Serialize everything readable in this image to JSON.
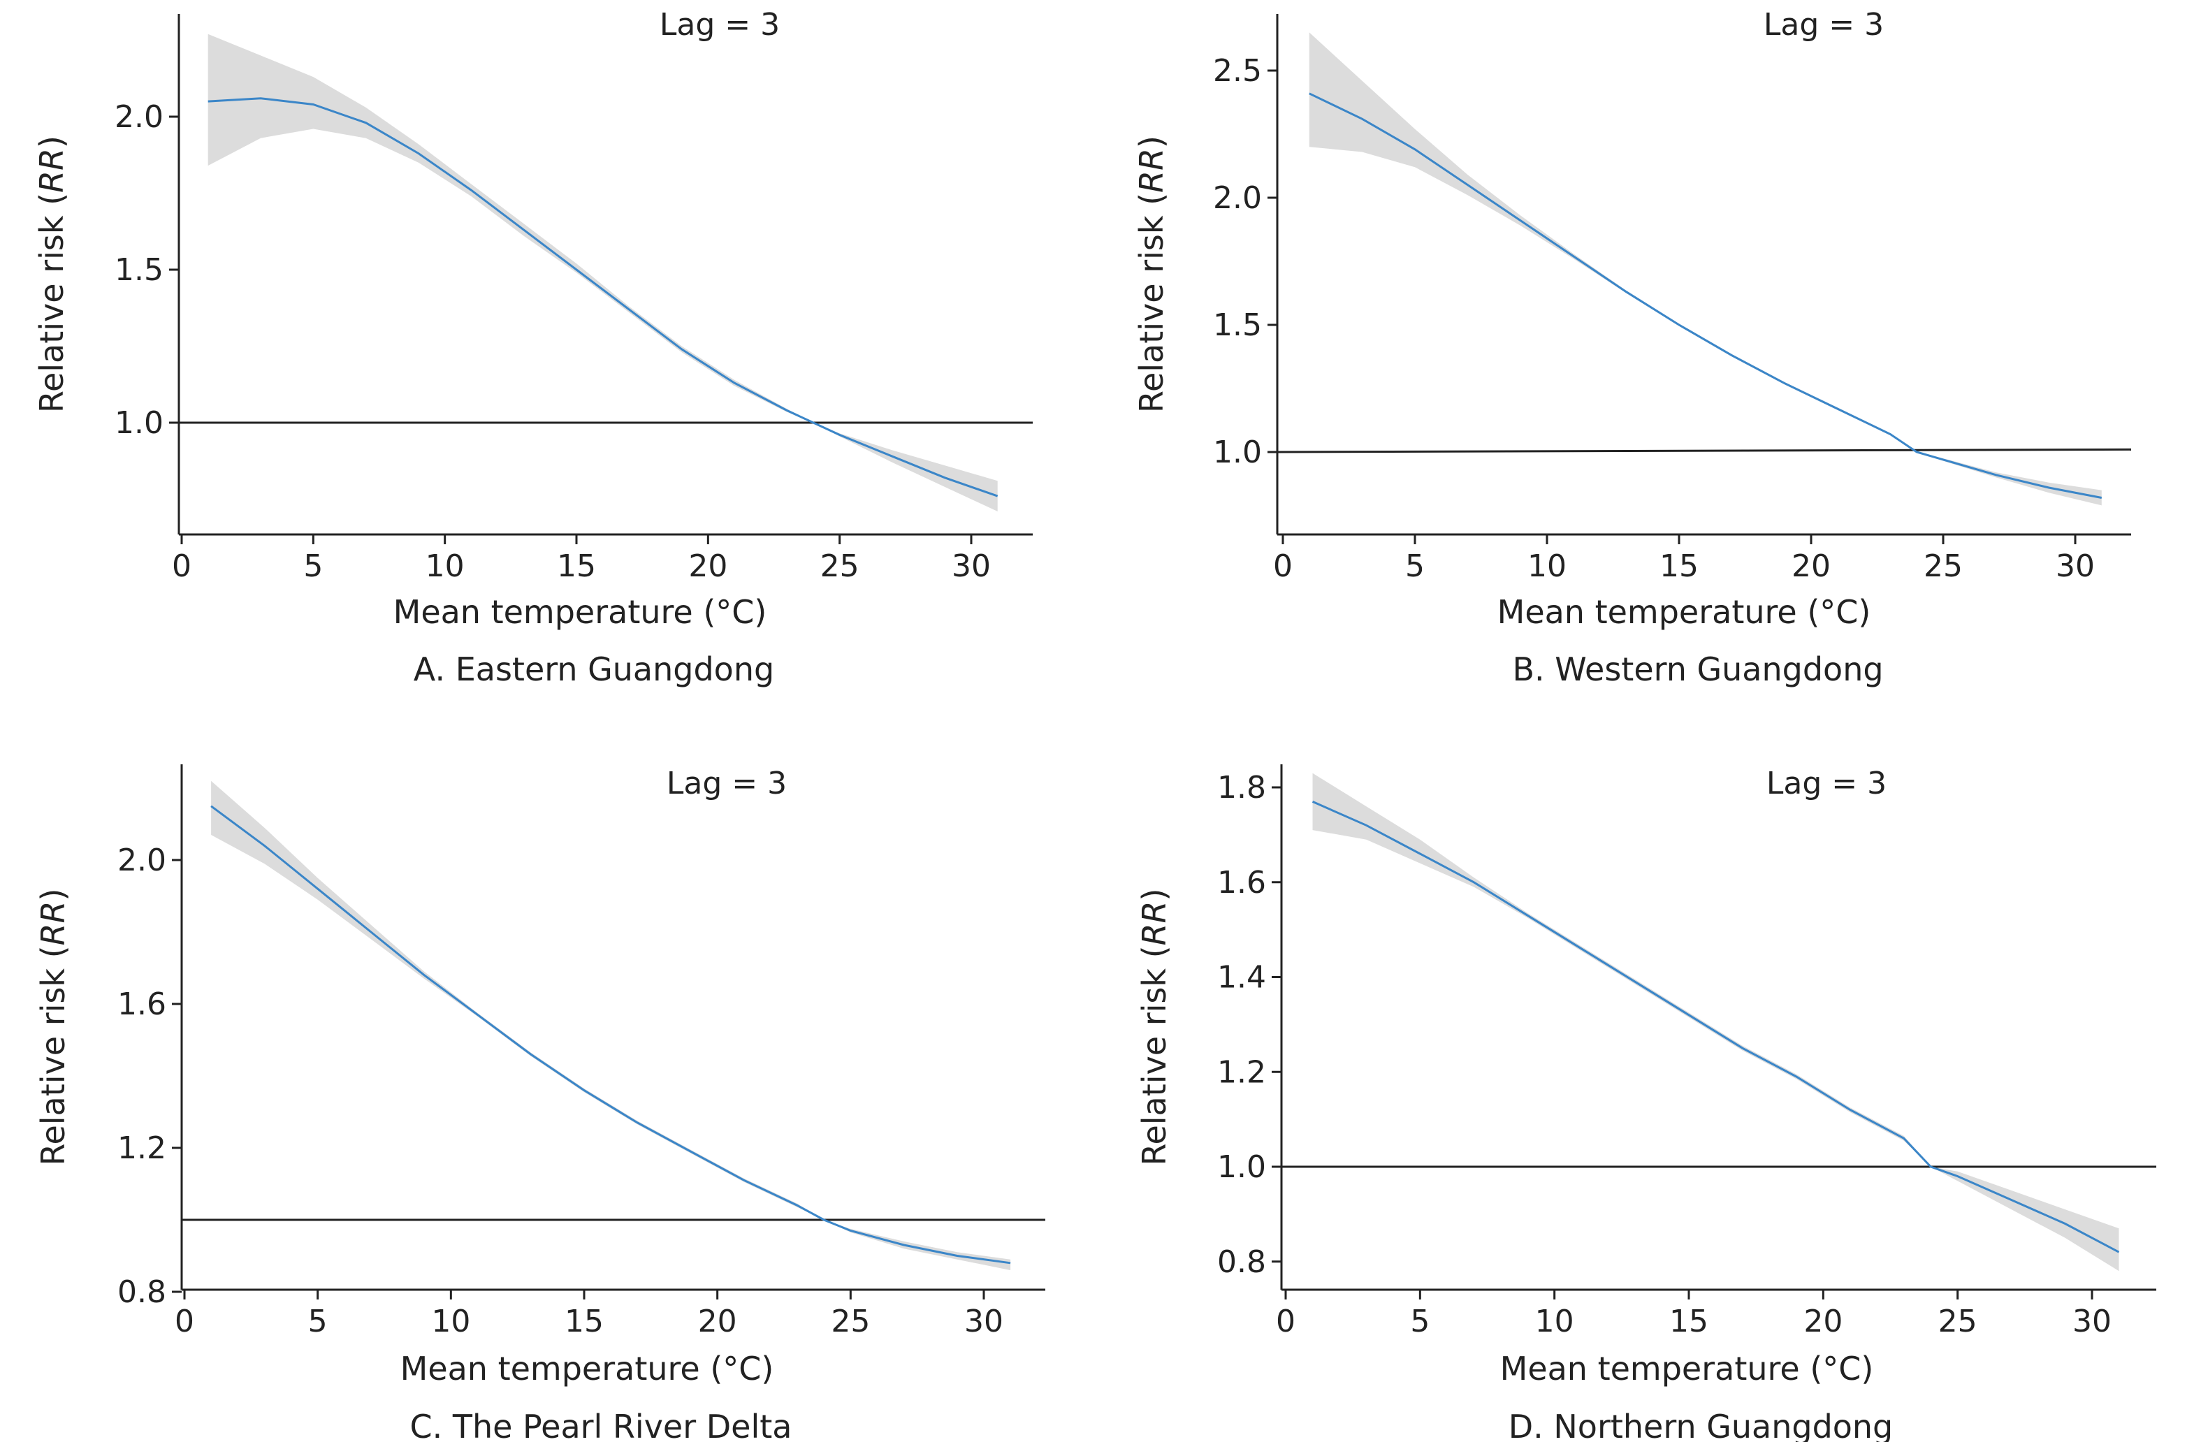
{
  "colors": {
    "curve": "#3b86c8",
    "band": "#dcdcdc",
    "axis": "#222222",
    "reference_line": "#222222"
  },
  "chart_data": [
    {
      "type": "line",
      "panel": "A",
      "caption": "A. Eastern Guangdong",
      "annotation": "Lag = 3",
      "xlabel": "Mean temperature (°C)",
      "ylabel_prefix": "Relative risk (",
      "ylabel_italic": "RR",
      "ylabel_suffix": ")",
      "xlim": [
        0,
        32.3
      ],
      "ylim": [
        0.64,
        2.33
      ],
      "xticks": [
        0,
        5,
        10,
        15,
        20,
        25,
        30
      ],
      "yticks": [
        1.0,
        1.5,
        2.0
      ],
      "ytick_labels": [
        "1.0",
        "1.5",
        "2.0"
      ],
      "reference_y": [
        1.0,
        1.0
      ],
      "series": [
        {
          "x": [
            1,
            3,
            5,
            7,
            9,
            11,
            13,
            15,
            17,
            19,
            21,
            23,
            24,
            25,
            27,
            29,
            31
          ],
          "y": [
            2.05,
            2.06,
            2.04,
            1.98,
            1.88,
            1.76,
            1.63,
            1.5,
            1.37,
            1.24,
            1.13,
            1.04,
            1.0,
            0.96,
            0.89,
            0.82,
            0.76
          ],
          "lower": [
            1.84,
            1.93,
            1.96,
            1.93,
            1.85,
            1.74,
            1.61,
            1.49,
            1.36,
            1.23,
            1.12,
            1.035,
            1.0,
            0.955,
            0.87,
            0.79,
            0.71
          ],
          "upper": [
            2.27,
            2.2,
            2.13,
            2.03,
            1.91,
            1.78,
            1.65,
            1.52,
            1.38,
            1.25,
            1.14,
            1.045,
            1.0,
            0.965,
            0.91,
            0.86,
            0.81
          ]
        }
      ]
    },
    {
      "type": "line",
      "panel": "B",
      "caption": "B. Western Guangdong",
      "annotation": "Lag = 3",
      "xlabel": "Mean temperature (°C)",
      "ylabel_prefix": "Relative risk (",
      "ylabel_italic": "RR",
      "ylabel_suffix": ")",
      "xlim": [
        0,
        32.3
      ],
      "ylim": [
        0.68,
        2.73
      ],
      "xticks": [
        0,
        5,
        10,
        15,
        20,
        25,
        30
      ],
      "yticks": [
        1.0,
        1.5,
        2.0,
        2.5
      ],
      "ytick_labels": [
        "1.0",
        "1.5",
        "2.0",
        "2.5"
      ],
      "reference_y": [
        1.0,
        1.01
      ],
      "series": [
        {
          "x": [
            1,
            3,
            5,
            7,
            9,
            11,
            13,
            15,
            17,
            19,
            21,
            23,
            24,
            25,
            27,
            29,
            31
          ],
          "y": [
            2.41,
            2.31,
            2.19,
            2.05,
            1.91,
            1.77,
            1.63,
            1.5,
            1.38,
            1.27,
            1.17,
            1.07,
            1.0,
            0.97,
            0.91,
            0.86,
            0.82
          ],
          "lower": [
            2.2,
            2.18,
            2.12,
            2.01,
            1.89,
            1.76,
            1.625,
            1.495,
            1.375,
            1.265,
            1.165,
            1.065,
            1.0,
            0.965,
            0.9,
            0.84,
            0.79
          ],
          "upper": [
            2.65,
            2.46,
            2.27,
            2.09,
            1.93,
            1.78,
            1.635,
            1.505,
            1.385,
            1.275,
            1.175,
            1.075,
            1.0,
            0.975,
            0.92,
            0.88,
            0.85
          ]
        }
      ]
    },
    {
      "type": "line",
      "panel": "C",
      "caption": "C. The Pearl River Delta",
      "annotation": "Lag = 3",
      "xlabel": "Mean temperature (°C)",
      "ylabel_prefix": "Relative risk (",
      "ylabel_italic": "RR",
      "ylabel_suffix": ")",
      "xlim": [
        0,
        32.3
      ],
      "ylim": [
        0.8,
        2.29
      ],
      "xticks": [
        0,
        5,
        10,
        15,
        20,
        25,
        30
      ],
      "yticks": [
        0.8,
        1.2,
        1.6,
        2.0
      ],
      "ytick_labels": [
        "0.8",
        "1.2",
        "1.6",
        "2.0"
      ],
      "reference_y": [
        1.0,
        1.0
      ],
      "series": [
        {
          "x": [
            1,
            3,
            5,
            7,
            9,
            11,
            13,
            15,
            17,
            19,
            21,
            23,
            24,
            25,
            27,
            29,
            31
          ],
          "y": [
            2.15,
            2.04,
            1.92,
            1.8,
            1.68,
            1.57,
            1.46,
            1.36,
            1.27,
            1.19,
            1.11,
            1.04,
            1.0,
            0.97,
            0.93,
            0.9,
            0.88
          ],
          "lower": [
            2.07,
            1.99,
            1.89,
            1.78,
            1.67,
            1.565,
            1.455,
            1.355,
            1.265,
            1.185,
            1.105,
            1.035,
            1.0,
            0.965,
            0.92,
            0.89,
            0.86
          ],
          "upper": [
            2.22,
            2.09,
            1.95,
            1.82,
            1.69,
            1.575,
            1.465,
            1.365,
            1.275,
            1.195,
            1.115,
            1.045,
            1.0,
            0.975,
            0.94,
            0.91,
            0.89
          ]
        }
      ]
    },
    {
      "type": "line",
      "panel": "D",
      "caption": "D. Northern Guangdong",
      "annotation": "Lag = 3",
      "xlabel": "Mean temperature (°C)",
      "ylabel_prefix": "Relative risk (",
      "ylabel_italic": "RR",
      "ylabel_suffix": ")",
      "xlim": [
        0,
        32.3
      ],
      "ylim": [
        0.745,
        1.865
      ],
      "xticks": [
        0,
        5,
        10,
        15,
        20,
        25,
        30
      ],
      "yticks": [
        0.8,
        1.0,
        1.2,
        1.4,
        1.6,
        1.8
      ],
      "ytick_labels": [
        "0.8",
        "1.0",
        "1.2",
        "1.4",
        "1.6",
        "1.8"
      ],
      "reference_y": [
        1.0,
        1.0
      ],
      "series": [
        {
          "x": [
            1,
            3,
            5,
            7,
            9,
            11,
            13,
            15,
            17,
            19,
            21,
            23,
            24,
            25,
            27,
            29,
            31
          ],
          "y": [
            1.77,
            1.72,
            1.66,
            1.6,
            1.53,
            1.46,
            1.39,
            1.32,
            1.25,
            1.19,
            1.12,
            1.06,
            1.0,
            0.98,
            0.93,
            0.88,
            0.82
          ],
          "lower": [
            1.71,
            1.69,
            1.64,
            1.59,
            1.525,
            1.455,
            1.385,
            1.315,
            1.245,
            1.185,
            1.115,
            1.055,
            1.0,
            0.97,
            0.91,
            0.85,
            0.78
          ],
          "upper": [
            1.83,
            1.76,
            1.69,
            1.61,
            1.535,
            1.465,
            1.395,
            1.325,
            1.255,
            1.195,
            1.125,
            1.065,
            1.0,
            0.99,
            0.95,
            0.91,
            0.87
          ]
        }
      ]
    }
  ]
}
